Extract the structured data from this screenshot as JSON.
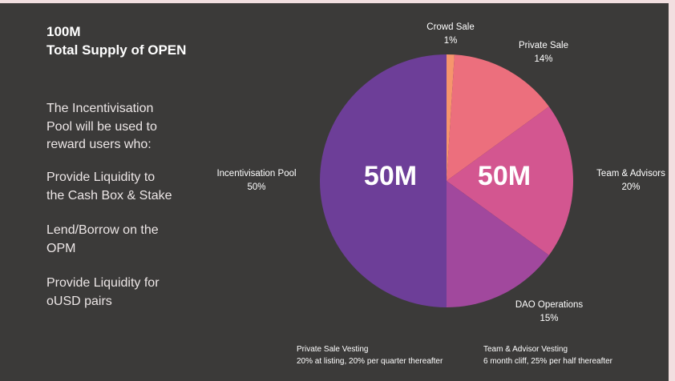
{
  "headline": {
    "line1": "100M",
    "line2": "Total Supply of OPEN"
  },
  "description": {
    "intro": [
      "The Incentivisation",
      "Pool will be used to",
      "reward users who:"
    ],
    "point1": [
      "Provide Liquidity to",
      "the Cash Box & Stake"
    ],
    "point2": [
      "Lend/Borrow on the",
      "OPM"
    ],
    "point3": [
      "Provide Liquidity for",
      "oUSD pairs"
    ]
  },
  "halves": {
    "left": "50M",
    "right": "50M"
  },
  "notes": {
    "private_sale_vesting": {
      "title": "Private Sale Vesting",
      "detail": "20% at listing, 20% per quarter thereafter"
    },
    "team_vesting": {
      "title": "Team & Advisor Vesting",
      "detail": "6 month cliff, 25% per half thereafter"
    }
  },
  "chart_data": {
    "type": "pie",
    "start": "12 o'clock",
    "direction": "clockwise",
    "slices": [
      {
        "name": "Crowd Sale",
        "label": "1%",
        "value": 1,
        "color": "#f6956c"
      },
      {
        "name": "Private Sale",
        "label": "14%",
        "value": 14,
        "color": "#ec6f7d"
      },
      {
        "name": "Team & Advisors",
        "label": "20%",
        "value": 20,
        "color": "#d35690"
      },
      {
        "name": "DAO Operations",
        "label": "15%",
        "value": 15,
        "color": "#a1489d"
      },
      {
        "name": "Incentivisation Pool",
        "label": "50%",
        "value": 50,
        "color": "#6d3e98"
      }
    ]
  }
}
